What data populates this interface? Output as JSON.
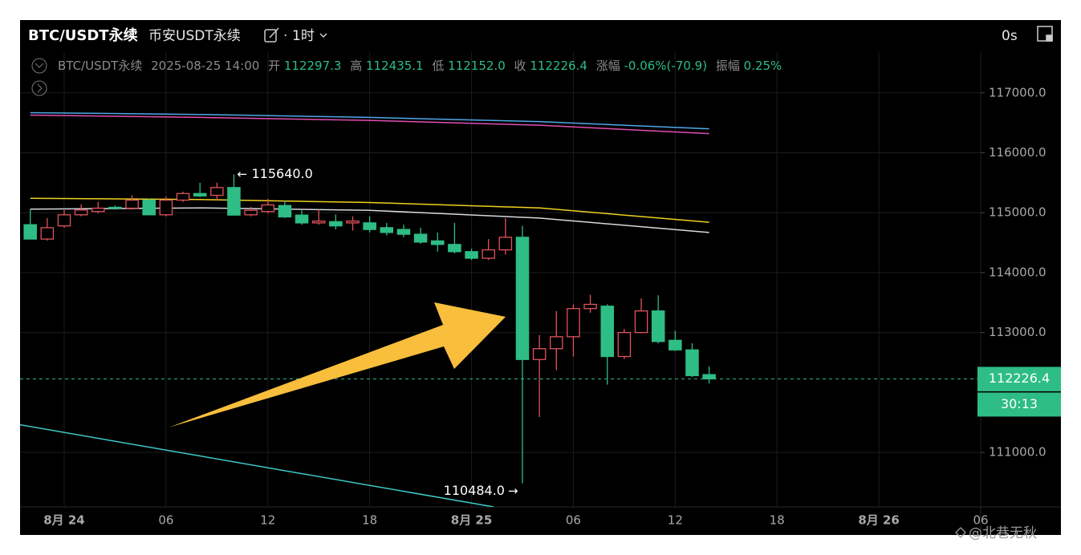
{
  "chart_data": {
    "type": "candlestick",
    "title": "BTC/USDT永续",
    "subtitle": "币安USDT永续",
    "interval": "1时",
    "refresh": "0s",
    "info": {
      "symbol": "BTC/USDT永续",
      "time": "2025-08-25 14:00",
      "open_label": "开",
      "open": "112297.3",
      "high_label": "高",
      "high": "112435.1",
      "low_label": "低",
      "low": "112152.0",
      "close_label": "收",
      "close": "112226.4",
      "change_label": "涨幅",
      "change": "-0.06%(-70.9)",
      "amplitude_label": "振幅",
      "amplitude": "0.25%"
    },
    "x": [
      -2,
      -1,
      0,
      1,
      2,
      3,
      4,
      5,
      6,
      7,
      8,
      9,
      10,
      11,
      12,
      13,
      14,
      15,
      16,
      17,
      18,
      19,
      20,
      21,
      22,
      23,
      24,
      25,
      26,
      27,
      28,
      29,
      30,
      31,
      32,
      33,
      34,
      35,
      36,
      37,
      38
    ],
    "open": [
      114800,
      114560,
      114780,
      114965,
      115020,
      115090,
      115075,
      115210,
      114965,
      115210,
      115320,
      115290,
      115420,
      114965,
      115020,
      115120,
      114960,
      114830,
      114850,
      114830,
      114830,
      114750,
      114720,
      114640,
      114530,
      114470,
      114350,
      114240,
      114380,
      114590,
      112550,
      112730,
      112930,
      113400,
      113440,
      112600,
      113000,
      113360,
      112870,
      112710,
      112297.3
    ],
    "high": [
      115050,
      114910,
      115045,
      115140,
      115180,
      115120,
      115290,
      115230,
      115270,
      115350,
      115500,
      115500,
      115640,
      115100,
      115230,
      115200,
      115040,
      115050,
      114970,
      114940,
      114940,
      114830,
      114800,
      114750,
      114670,
      114830,
      114400,
      114560,
      114910,
      114780,
      112960,
      113360,
      113470,
      113630,
      113470,
      113060,
      113570,
      113620,
      113030,
      112820,
      112435.1
    ],
    "low": [
      114560,
      114535,
      114750,
      114940,
      114990,
      115050,
      115050,
      114965,
      114940,
      115180,
      115260,
      115200,
      114960,
      114940,
      114990,
      114910,
      114800,
      114800,
      114720,
      114700,
      114670,
      114620,
      114590,
      114480,
      114350,
      114320,
      114210,
      114210,
      114300,
      110484,
      111590,
      112370,
      112600,
      113330,
      112130,
      112560,
      112990,
      112820,
      112690,
      112260,
      112152.0
    ],
    "close": [
      114560,
      114750,
      114965,
      115045,
      115075,
      115075,
      115210,
      114965,
      115210,
      115320,
      115280,
      115420,
      114960,
      115040,
      115130,
      114930,
      114830,
      114860,
      114780,
      114860,
      114720,
      114670,
      114640,
      114510,
      114470,
      114350,
      114240,
      114380,
      114590,
      112550,
      112730,
      112930,
      113400,
      113470,
      112600,
      113000,
      113360,
      112850,
      112710,
      112280,
      112226.4
    ],
    "up_color": "#e0535c",
    "down_color": "#2ebd85",
    "overlays": [
      {
        "color": "#4fa8e8",
        "x": [
          -2,
          8,
          18,
          28,
          38
        ],
        "values": [
          116670,
          116640,
          116590,
          116520,
          116400
        ]
      },
      {
        "color": "#e04fb0",
        "x": [
          -2,
          8,
          18,
          28,
          38
        ],
        "values": [
          116630,
          116590,
          116540,
          116460,
          116320
        ]
      },
      {
        "color": "#f0d020",
        "x": [
          -2,
          8,
          18,
          28,
          38
        ],
        "values": [
          115240,
          115220,
          115170,
          115080,
          114840
        ]
      },
      {
        "color": "#d8d8e0",
        "x": [
          -2,
          8,
          18,
          28,
          38
        ],
        "values": [
          115060,
          115080,
          115040,
          114910,
          114670
        ]
      },
      {
        "color": "#3fc9c9",
        "x": [
          -2.6,
          25.3
        ],
        "values": [
          111460,
          110090
        ]
      }
    ],
    "xlim": [
      -2.6,
      54
    ],
    "xticks": [
      {
        "value": 0,
        "label": "8月 24"
      },
      {
        "value": 6,
        "label": "06"
      },
      {
        "value": 12,
        "label": "12"
      },
      {
        "value": 18,
        "label": "18"
      },
      {
        "value": 24,
        "label": "8月 25"
      },
      {
        "value": 30,
        "label": "06"
      },
      {
        "value": 36,
        "label": "12"
      },
      {
        "value": 42,
        "label": "18"
      },
      {
        "value": 48,
        "label": "8月 26"
      },
      {
        "value": 54,
        "label": "06"
      }
    ],
    "ylim": [
      110090,
      117680
    ],
    "yticks": [
      {
        "value": 111000,
        "label": "111000.0"
      },
      {
        "value": 113000,
        "label": "113000.0"
      },
      {
        "value": 114000,
        "label": "114000.0"
      },
      {
        "value": 115000,
        "label": "115000.0"
      },
      {
        "value": 116000,
        "label": "116000.0"
      },
      {
        "value": 117000,
        "label": "117000.0"
      }
    ],
    "grid": true,
    "high_annotation": "115640.0",
    "low_annotation": "110484.0",
    "last_price_label": "112226.4",
    "countdown": "30:13"
  },
  "watermark": "@北巷无秋"
}
